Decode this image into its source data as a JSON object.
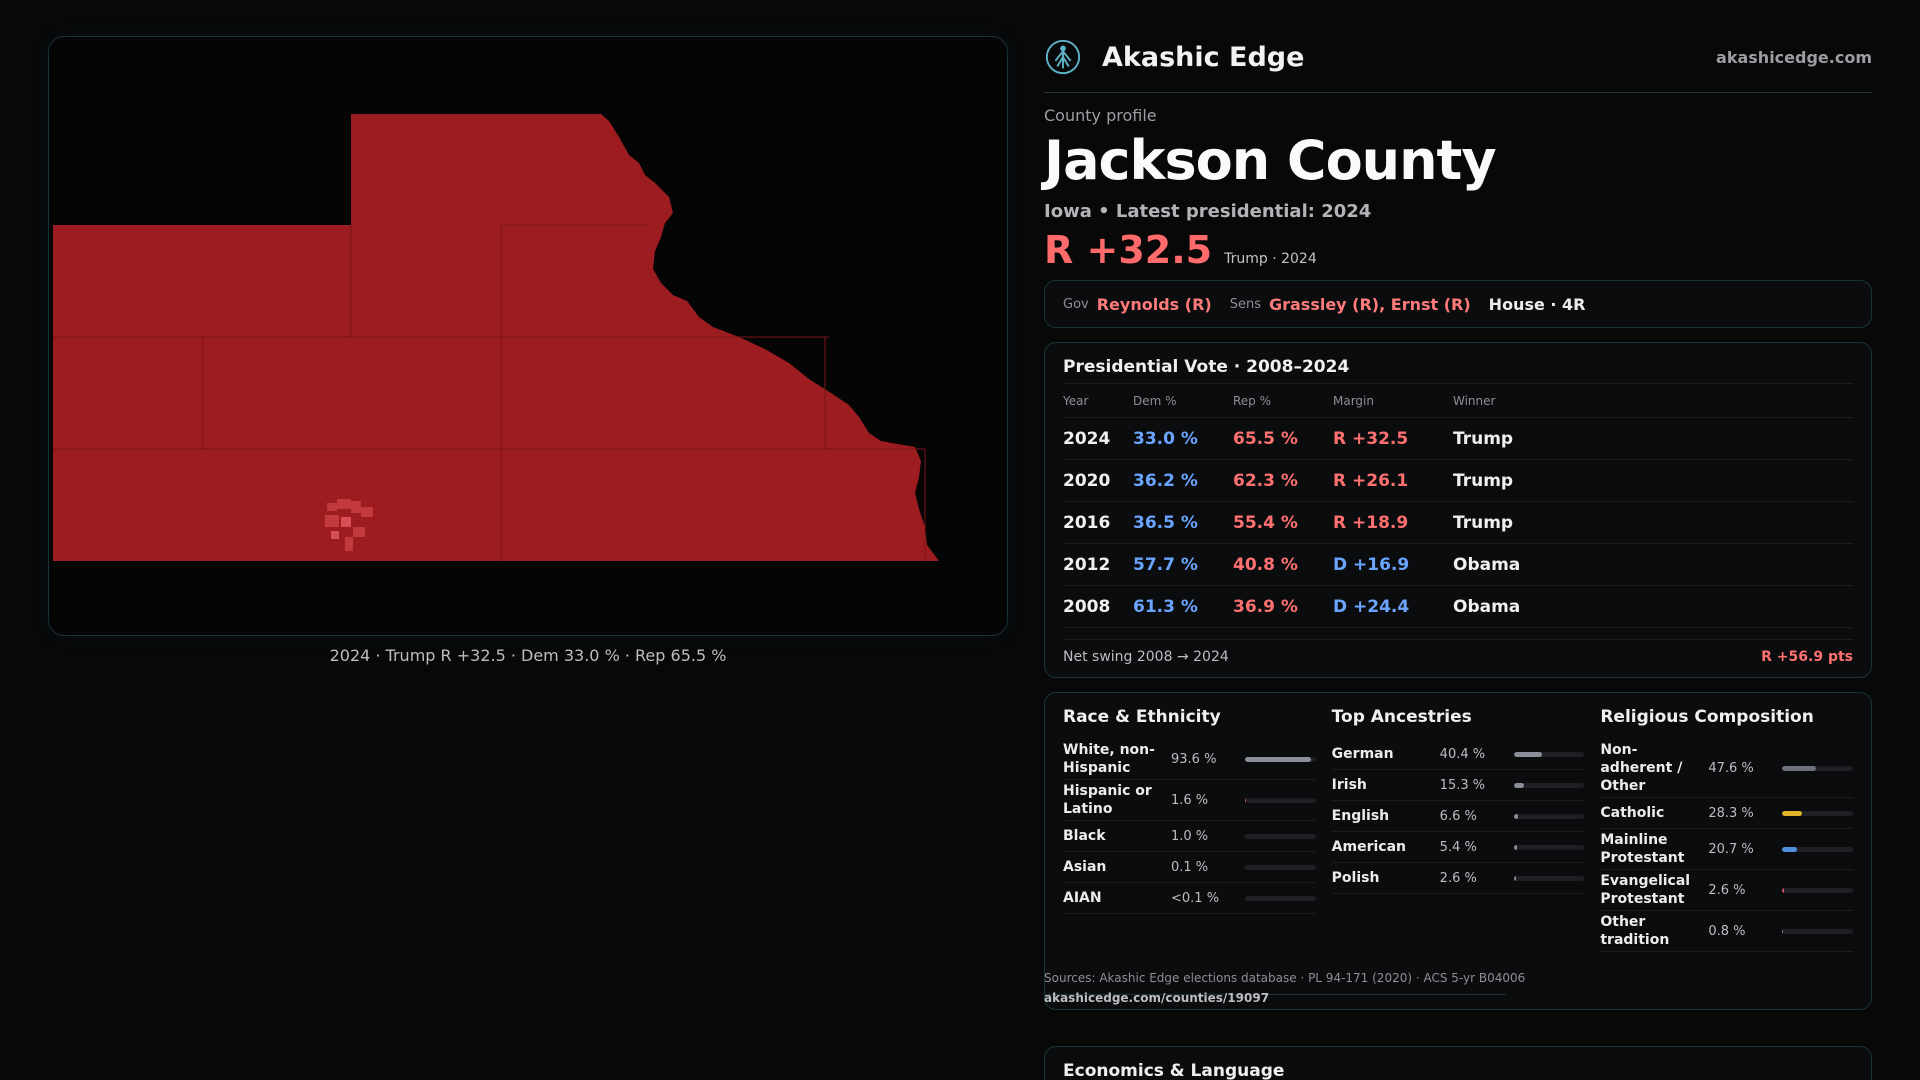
{
  "brand": {
    "name": "Akashic Edge",
    "url": "akashicedge.com",
    "logo": "akashic-tree-icon"
  },
  "profile": {
    "eyebrow": "County profile",
    "title": "Jackson County",
    "subtitle": "Iowa • Latest presidential: 2024",
    "margin": "R +32.5",
    "margin_sub": "Trump · 2024"
  },
  "officials": {
    "gov_tag": "Gov",
    "gov": "Reynolds (R)",
    "sens_tag": "Sens",
    "sens": "Grassley (R), Ernst (R)",
    "house": "House · 4R"
  },
  "map": {
    "caption": "2024 · Trump R +32.5 · Dem 33.0 % · Rep 65.5 %",
    "fill": "#9d1c20"
  },
  "presidential": {
    "title": "Presidential Vote · 2008–2024",
    "headers": [
      "Year",
      "Dem %",
      "Rep %",
      "Margin",
      "Winner"
    ],
    "rows": [
      {
        "year": "2024",
        "dem": "33.0 %",
        "rep": "65.5 %",
        "margin": "R +32.5",
        "winner": "Trump"
      },
      {
        "year": "2020",
        "dem": "36.2 %",
        "rep": "62.3 %",
        "margin": "R +26.1",
        "winner": "Trump"
      },
      {
        "year": "2016",
        "dem": "36.5 %",
        "rep": "55.4 %",
        "margin": "R +18.9",
        "winner": "Trump"
      },
      {
        "year": "2012",
        "dem": "57.7 %",
        "rep": "40.8 %",
        "margin": "D +16.9",
        "winner": "Obama"
      },
      {
        "year": "2008",
        "dem": "61.3 %",
        "rep": "36.9 %",
        "margin": "D +24.4",
        "winner": "Obama"
      }
    ],
    "swing_label": "Net swing 2008 → 2024",
    "swing_value": "R +56.9 pts"
  },
  "race": {
    "title": "Race & Ethnicity",
    "items": [
      {
        "label": "White, non-Hispanic",
        "value": "93.6 %",
        "pct": 93.6,
        "color": "#8a8e98"
      },
      {
        "label": "Hispanic or Latino",
        "value": "1.6 %",
        "pct": 1.6,
        "color": "#d05a3c"
      },
      {
        "label": "Black",
        "value": "1.0 %",
        "pct": 1.0,
        "color": "#2a2a2e"
      },
      {
        "label": "Asian",
        "value": "0.1 %",
        "pct": 0.1,
        "color": "#2a2a2e"
      },
      {
        "label": "AIAN",
        "value": "<0.1 %",
        "pct": 0.0,
        "color": "#2a2a2e"
      }
    ]
  },
  "ancestry": {
    "title": "Top Ancestries",
    "items": [
      {
        "label": "German",
        "value": "40.4 %",
        "pct": 40.4,
        "color": "#8a8e98"
      },
      {
        "label": "Irish",
        "value": "15.3 %",
        "pct": 15.3,
        "color": "#8a8e98"
      },
      {
        "label": "English",
        "value": "6.6 %",
        "pct": 6.6,
        "color": "#8a8e98"
      },
      {
        "label": "American",
        "value": "5.4 %",
        "pct": 5.4,
        "color": "#8a8e98"
      },
      {
        "label": "Polish",
        "value": "2.6 %",
        "pct": 2.6,
        "color": "#8a8e98"
      }
    ]
  },
  "religion": {
    "title": "Religious Composition",
    "items": [
      {
        "label": "Non-adherent / Other",
        "value": "47.6 %",
        "pct": 47.6,
        "color": "#6e727c"
      },
      {
        "label": "Catholic",
        "value": "28.3 %",
        "pct": 28.3,
        "color": "#e0b52a"
      },
      {
        "label": "Mainline Protestant",
        "value": "20.7 %",
        "pct": 20.7,
        "color": "#4f8fe0"
      },
      {
        "label": "Evangelical Protestant",
        "value": "2.6 %",
        "pct": 2.6,
        "color": "#d0506a"
      },
      {
        "label": "Other tradition",
        "value": "0.8 %",
        "pct": 0.8,
        "color": "#8a8e98"
      }
    ]
  },
  "sources": {
    "text": "Sources: Akashic Edge elections database · PL 94-171 (2020) · ACS 5-yr B04006",
    "link": "akashicedge.com/counties/19097"
  },
  "economics": {
    "title": "Economics & Language"
  }
}
